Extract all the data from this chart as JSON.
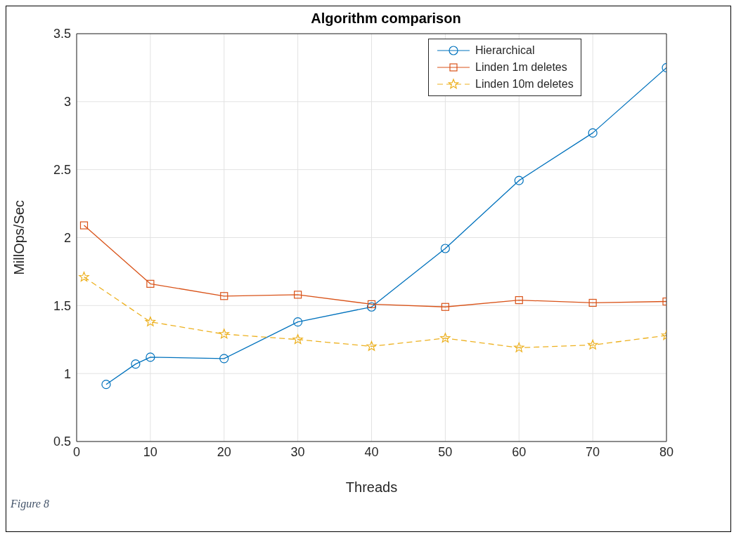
{
  "chart_data": {
    "type": "line",
    "title": "Algorithm comparison",
    "xlabel": "Threads",
    "ylabel": "MillOps/Sec",
    "xlim": [
      0,
      80
    ],
    "xticks": [
      0,
      10,
      20,
      30,
      40,
      50,
      60,
      70,
      80
    ],
    "ylim": [
      0.5,
      3.5
    ],
    "yticks": [
      0.5,
      1,
      1.5,
      2,
      2.5,
      3,
      3.5
    ],
    "grid": true,
    "legend": "top right",
    "series": [
      {
        "name": "Hierarchical",
        "color": "#0072bd",
        "marker": "circle",
        "line_style": "solid",
        "x": [
          4,
          8,
          10,
          20,
          30,
          40,
          50,
          60,
          70,
          80
        ],
        "values": [
          0.92,
          1.07,
          1.12,
          1.11,
          1.38,
          1.49,
          1.92,
          2.42,
          2.77,
          3.25
        ]
      },
      {
        "name": "Linden 1m deletes",
        "color": "#d95319",
        "marker": "square",
        "line_style": "solid",
        "x": [
          1,
          10,
          20,
          30,
          40,
          50,
          60,
          70,
          80
        ],
        "values": [
          2.09,
          1.66,
          1.57,
          1.58,
          1.51,
          1.49,
          1.54,
          1.52,
          1.53
        ]
      },
      {
        "name": "Linden 10m deletes",
        "color": "#edb120",
        "marker": "star",
        "line_style": "dashed",
        "x": [
          1,
          10,
          20,
          30,
          40,
          50,
          60,
          70,
          80
        ],
        "values": [
          1.71,
          1.38,
          1.29,
          1.25,
          1.2,
          1.26,
          1.19,
          1.21,
          1.28
        ]
      }
    ],
    "annotations": [
      "Figure 8"
    ]
  }
}
